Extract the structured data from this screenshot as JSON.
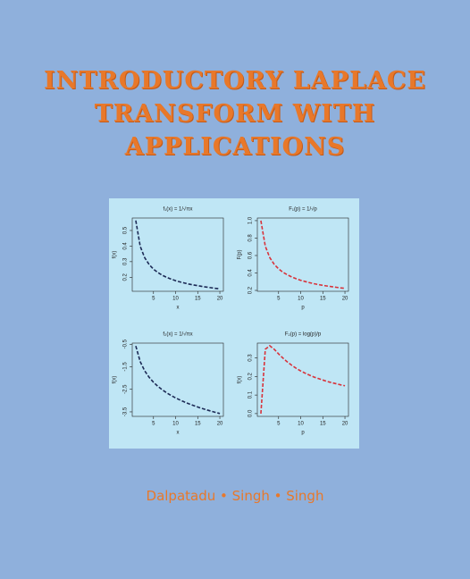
{
  "cover": {
    "title_lines": [
      "INTRODUCTORY LAPLACE",
      "TRANSFORM WITH",
      "APPLICATIONS"
    ],
    "authors": "Dalpatadu • Singh • Singh"
  },
  "chart_data": [
    {
      "type": "line",
      "title": "f₁(x) = 1/√πx",
      "xlabel": "x",
      "ylabel": "f(x)",
      "color": "#1c2a55",
      "line_style": "dashed",
      "x": [
        1,
        2,
        3,
        4,
        5,
        6,
        7,
        8,
        9,
        10,
        11,
        12,
        13,
        14,
        15,
        16,
        17,
        18,
        19,
        20
      ],
      "values": [
        0.564,
        0.399,
        0.326,
        0.282,
        0.252,
        0.23,
        0.213,
        0.199,
        0.188,
        0.178,
        0.17,
        0.163,
        0.156,
        0.151,
        0.146,
        0.141,
        0.137,
        0.133,
        0.129,
        0.126
      ],
      "xlim": [
        0.2,
        20.8
      ],
      "ylim": [
        0.11,
        0.58
      ],
      "xticks": [
        5,
        10,
        15,
        20
      ],
      "yticks": [
        0.2,
        0.3,
        0.4,
        0.5
      ]
    },
    {
      "type": "line",
      "title": "F₁(p) = 1/√p",
      "xlabel": "p",
      "ylabel": "F(p)",
      "color": "#d8323a",
      "line_style": "dashed",
      "x": [
        1,
        2,
        3,
        4,
        5,
        6,
        7,
        8,
        9,
        10,
        11,
        12,
        13,
        14,
        15,
        16,
        17,
        18,
        19,
        20
      ],
      "values": [
        1,
        0.707,
        0.577,
        0.5,
        0.447,
        0.408,
        0.378,
        0.354,
        0.333,
        0.316,
        0.302,
        0.289,
        0.277,
        0.267,
        0.258,
        0.25,
        0.243,
        0.236,
        0.229,
        0.224
      ],
      "xlim": [
        0.2,
        20.8
      ],
      "ylim": [
        0.19,
        1.03
      ],
      "xticks": [
        5,
        10,
        15,
        20
      ],
      "yticks": [
        0.2,
        0.4,
        0.6,
        0.8,
        {
          "value": 1,
          "label": "1.0"
        }
      ]
    },
    {
      "type": "line",
      "title": "f₂(x) = 1/√πx",
      "xlabel": "x",
      "ylabel": "f(x)",
      "color": "#1c2a55",
      "line_style": "dashed",
      "x": [
        1,
        2,
        3,
        4,
        5,
        6,
        7,
        8,
        9,
        10,
        11,
        12,
        13,
        14,
        15,
        16,
        17,
        18,
        19,
        20
      ],
      "values": [
        -0.577,
        -1.27,
        -1.676,
        -1.963,
        -2.186,
        -2.369,
        -2.523,
        -2.657,
        -2.774,
        -2.88,
        -2.975,
        -3.062,
        -3.142,
        -3.216,
        -3.285,
        -3.35,
        -3.41,
        -3.467,
        -3.521,
        -3.573
      ],
      "xlim": [
        0.2,
        20.8
      ],
      "ylim": [
        -3.7,
        -0.45
      ],
      "xticks": [
        5,
        10,
        15,
        20
      ],
      "yticks": [
        -0.5,
        -1.5,
        -2.5,
        -3.5
      ]
    },
    {
      "type": "line",
      "title": "F₂(p) = log(p)/p",
      "xlabel": "p",
      "ylabel": "f(x)",
      "color": "#d8323a",
      "line_style": "dashed",
      "x": [
        1,
        2,
        3,
        4,
        5,
        6,
        7,
        8,
        9,
        10,
        11,
        12,
        13,
        14,
        15,
        16,
        17,
        18,
        19,
        20
      ],
      "values": [
        0,
        0.347,
        0.366,
        0.347,
        0.322,
        0.299,
        0.278,
        0.26,
        0.244,
        0.23,
        0.218,
        0.207,
        0.197,
        0.189,
        0.181,
        0.173,
        0.167,
        0.161,
        0.155,
        0.15
      ],
      "xlim": [
        0.2,
        20.8
      ],
      "ylim": [
        -0.015,
        0.38
      ],
      "xticks": [
        5,
        10,
        15,
        20
      ],
      "yticks": [
        {
          "value": 0,
          "label": "0.0"
        },
        0.1,
        0.2,
        0.3
      ]
    }
  ]
}
